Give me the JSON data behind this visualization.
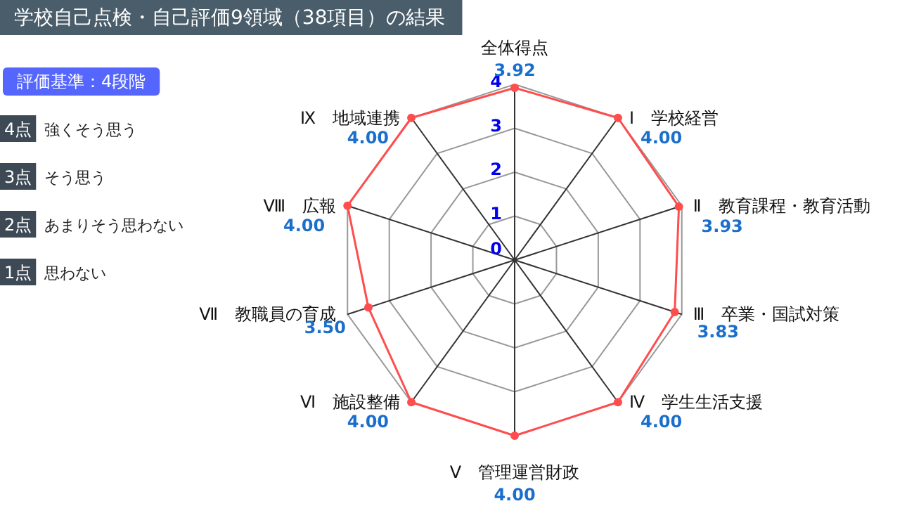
{
  "chart_data": {
    "type": "radar",
    "title": "学校自己点検・自己評価9領域（38項目）の結果",
    "categories": [
      "全体得点",
      "Ⅰ　学校経営",
      "Ⅱ　教育課程・教育活動",
      "Ⅲ　卒業・国試対策",
      "Ⅳ　学生生活支援",
      "Ⅴ　管理運営財政",
      "Ⅵ　施設整備",
      "Ⅶ　教職員の育成",
      "Ⅷ　広報",
      "Ⅸ　地域連携"
    ],
    "series": [
      {
        "color": "#ff4d4d",
        "values": [
          3.92,
          4.0,
          3.93,
          3.83,
          4.0,
          4.0,
          4.0,
          3.5,
          4.0,
          4.0
        ],
        "value_labels": [
          "3.92",
          "4.00",
          "3.93",
          "3.83",
          "4.00",
          "4.00",
          "4.00",
          "3.50",
          "4.00",
          "4.00"
        ]
      }
    ],
    "ylim": [
      0,
      4
    ],
    "yticks": [
      0,
      1,
      2,
      3,
      4
    ],
    "grid": true,
    "marker": "circle",
    "annotations": [
      "評価基準：4段階",
      "4点　強くそう思う",
      "3点　そう思う",
      "2点　あまりそう思わない",
      "1点　思わない"
    ]
  }
}
